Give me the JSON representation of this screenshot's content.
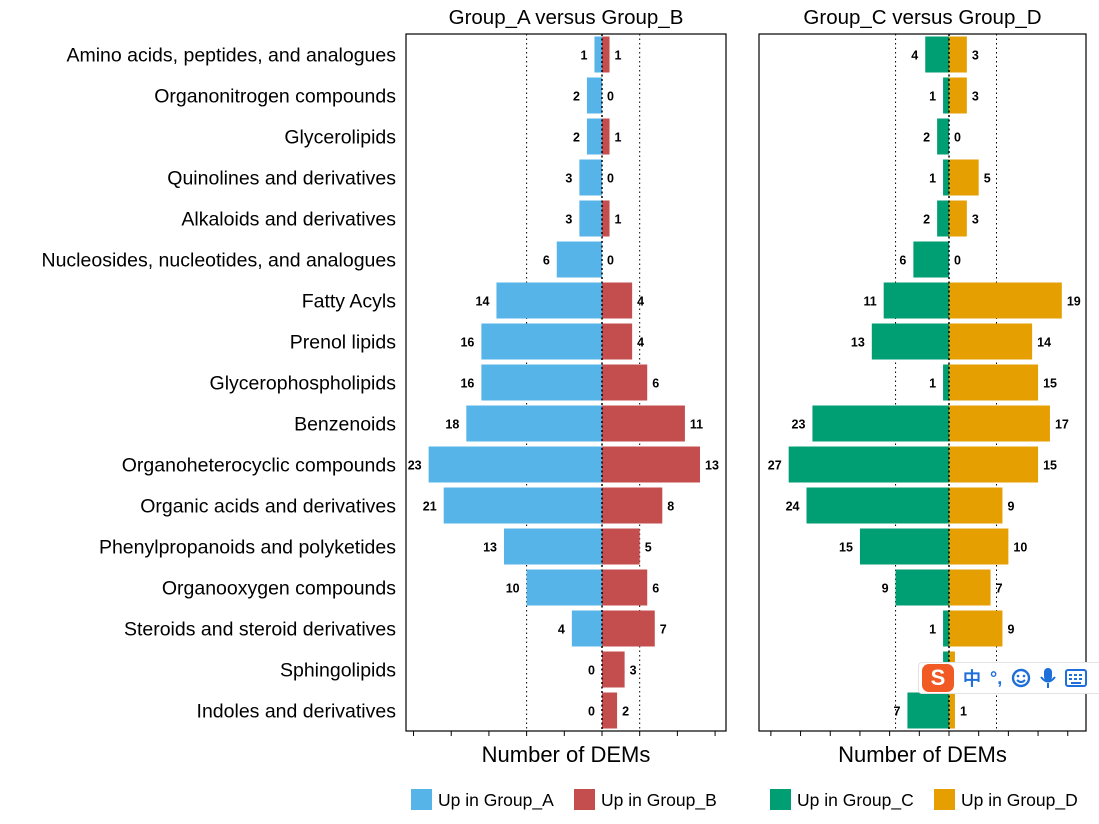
{
  "chart_data": [
    {
      "type": "bar",
      "orientation": "horizontal-diverging",
      "title": "Group_A versus Group_B",
      "xlabel": "Number of DEMs",
      "categories": [
        "Amino acids, peptides, and analogues",
        "Organonitrogen compounds",
        "Glycerolipids",
        "Quinolines and derivatives",
        "Alkaloids and derivatives",
        "Nucleosides, nucleotides, and analogues",
        "Fatty Acyls",
        "Prenol lipids",
        "Glycerophospholipids",
        "Benzenoids",
        "Organoheterocyclic compounds",
        "Organic acids and derivatives",
        "Phenylpropanoids and polyketides",
        "Organooxygen compounds",
        "Steroids and steroid derivatives",
        "Sphingolipids",
        "Indoles and derivatives"
      ],
      "series": [
        {
          "name": "Up in Group_A",
          "side": "left",
          "color": "#56B4E9",
          "values": [
            1,
            2,
            2,
            3,
            3,
            6,
            14,
            16,
            16,
            18,
            23,
            21,
            13,
            10,
            4,
            0,
            0
          ]
        },
        {
          "name": "Up in Group_B",
          "side": "right",
          "color": "#C44E4E",
          "values": [
            1,
            0,
            1,
            0,
            1,
            0,
            4,
            4,
            6,
            11,
            13,
            8,
            5,
            6,
            7,
            3,
            2
          ]
        }
      ],
      "xlim": [
        -26,
        19
      ],
      "dotted_lines": [
        -10,
        5
      ],
      "legend_position": "bottom"
    },
    {
      "type": "bar",
      "orientation": "horizontal-diverging",
      "title": "Group_C versus Group_D",
      "xlabel": "Number of DEMs",
      "categories": [
        "Amino acids, peptides, and analogues",
        "Organonitrogen compounds",
        "Glycerolipids",
        "Quinolines and derivatives",
        "Alkaloids and derivatives",
        "Nucleosides, nucleotides, and analogues",
        "Fatty Acyls",
        "Prenol lipids",
        "Glycerophospholipids",
        "Benzenoids",
        "Organoheterocyclic compounds",
        "Organic acids and derivatives",
        "Phenylpropanoids and polyketides",
        "Organooxygen compounds",
        "Steroids and steroid derivatives",
        "Sphingolipids",
        "Indoles and derivatives"
      ],
      "series": [
        {
          "name": "Up in Group_C",
          "side": "left",
          "color": "#009E73",
          "values": [
            4,
            1,
            2,
            1,
            2,
            6,
            11,
            13,
            1,
            23,
            27,
            24,
            15,
            9,
            1,
            1,
            7
          ]
        },
        {
          "name": "Up in Group_D",
          "side": "right",
          "color": "#E69F00",
          "values": [
            3,
            3,
            0,
            5,
            3,
            0,
            19,
            14,
            15,
            17,
            15,
            9,
            10,
            7,
            9,
            1,
            1
          ]
        }
      ],
      "xlim": [
        -32,
        20
      ],
      "dotted_lines": [
        -9,
        8
      ],
      "legend_position": "bottom"
    }
  ],
  "ime_toolbar": {
    "logo": "S",
    "chinese_mode": "中",
    "punctuation": "°,",
    "icons": [
      "emoji-icon",
      "microphone-icon",
      "keyboard-icon"
    ]
  }
}
